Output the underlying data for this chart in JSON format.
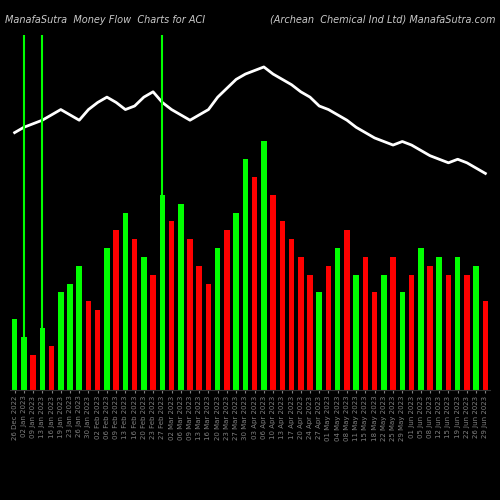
{
  "title_left": "ManafaSutra  Money Flow  Charts for ACI",
  "title_right": "(Archean  Chemical Ind Ltd) ManafaSutra.com",
  "background_color": "#000000",
  "bar_width": 0.6,
  "categories": [
    "26 Dec 2022",
    "02 Jan 2023",
    "09 Jan 2023",
    "13 Jan 2023",
    "16 Jan 2023",
    "19 Jan 2023",
    "23 Jan 2023",
    "26 Jan 2023",
    "30 Jan 2023",
    "02 Feb 2023",
    "06 Feb 2023",
    "09 Feb 2023",
    "13 Feb 2023",
    "16 Feb 2023",
    "20 Feb 2023",
    "23 Feb 2023",
    "27 Feb 2023",
    "02 Mar 2023",
    "06 Mar 2023",
    "09 Mar 2023",
    "13 Mar 2023",
    "16 Mar 2023",
    "20 Mar 2023",
    "23 Mar 2023",
    "27 Mar 2023",
    "30 Mar 2023",
    "03 Apr 2023",
    "06 Apr 2023",
    "10 Apr 2023",
    "13 Apr 2023",
    "17 Apr 2023",
    "20 Apr 2023",
    "24 Apr 2023",
    "27 Apr 2023",
    "01 May 2023",
    "04 May 2023",
    "08 May 2023",
    "11 May 2023",
    "15 May 2023",
    "18 May 2023",
    "22 May 2023",
    "25 May 2023",
    "29 May 2023",
    "01 Jun 2023",
    "05 Jun 2023",
    "08 Jun 2023",
    "12 Jun 2023",
    "15 Jun 2023",
    "19 Jun 2023",
    "22 Jun 2023",
    "26 Jun 2023",
    "29 Jun 2023"
  ],
  "bar_values": [
    40,
    30,
    20,
    35,
    25,
    55,
    60,
    70,
    50,
    45,
    80,
    90,
    100,
    85,
    75,
    65,
    110,
    95,
    105,
    85,
    70,
    60,
    80,
    90,
    100,
    130,
    120,
    140,
    110,
    95,
    85,
    75,
    65,
    55,
    70,
    80,
    90,
    65,
    75,
    55,
    65,
    75,
    55,
    65,
    80,
    70,
    75,
    65,
    75,
    65,
    70,
    50
  ],
  "bar_colors": [
    "#00ff00",
    "#00ff00",
    "#ff0000",
    "#00ff00",
    "#ff0000",
    "#00ff00",
    "#00ff00",
    "#00ff00",
    "#ff0000",
    "#ff0000",
    "#00ff00",
    "#ff0000",
    "#00ff00",
    "#ff0000",
    "#00ff00",
    "#ff0000",
    "#00ff00",
    "#ff0000",
    "#00ff00",
    "#ff0000",
    "#ff0000",
    "#ff0000",
    "#00ff00",
    "#ff0000",
    "#00ff00",
    "#00ff00",
    "#ff0000",
    "#00ff00",
    "#ff0000",
    "#ff0000",
    "#ff0000",
    "#ff0000",
    "#ff0000",
    "#00ff00",
    "#ff0000",
    "#00ff00",
    "#ff0000",
    "#00ff00",
    "#ff0000",
    "#ff0000",
    "#00ff00",
    "#ff0000",
    "#00ff00",
    "#ff0000",
    "#00ff00",
    "#ff0000",
    "#00ff00",
    "#ff0000",
    "#00ff00",
    "#ff0000",
    "#00ff00",
    "#ff0000"
  ],
  "line_values": [
    145,
    148,
    150,
    152,
    155,
    158,
    155,
    152,
    158,
    162,
    165,
    162,
    158,
    160,
    165,
    168,
    162,
    158,
    155,
    152,
    155,
    158,
    165,
    170,
    175,
    178,
    180,
    182,
    178,
    175,
    172,
    168,
    165,
    160,
    158,
    155,
    152,
    148,
    145,
    142,
    140,
    138,
    140,
    138,
    135,
    132,
    130,
    128,
    130,
    128,
    125,
    122
  ],
  "green_vline_positions": [
    1,
    3,
    16
  ],
  "xlabel_fontsize": 5,
  "title_fontsize": 7,
  "line_color": "#ffffff",
  "line_width": 2
}
